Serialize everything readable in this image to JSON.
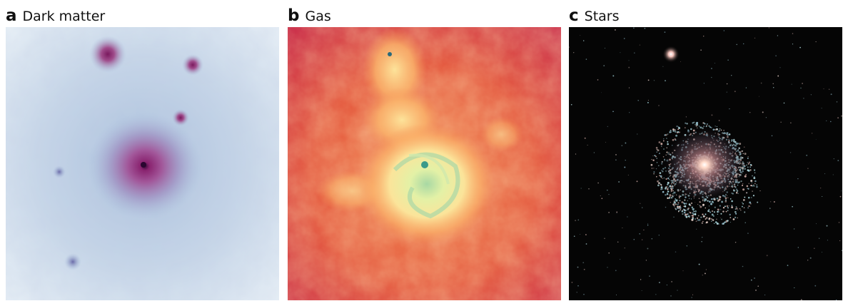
{
  "figure": {
    "panels": [
      {
        "letter": "a",
        "title": "Dark matter"
      },
      {
        "letter": "b",
        "title": "Gas"
      },
      {
        "letter": "c",
        "title": "Stars"
      }
    ]
  }
}
